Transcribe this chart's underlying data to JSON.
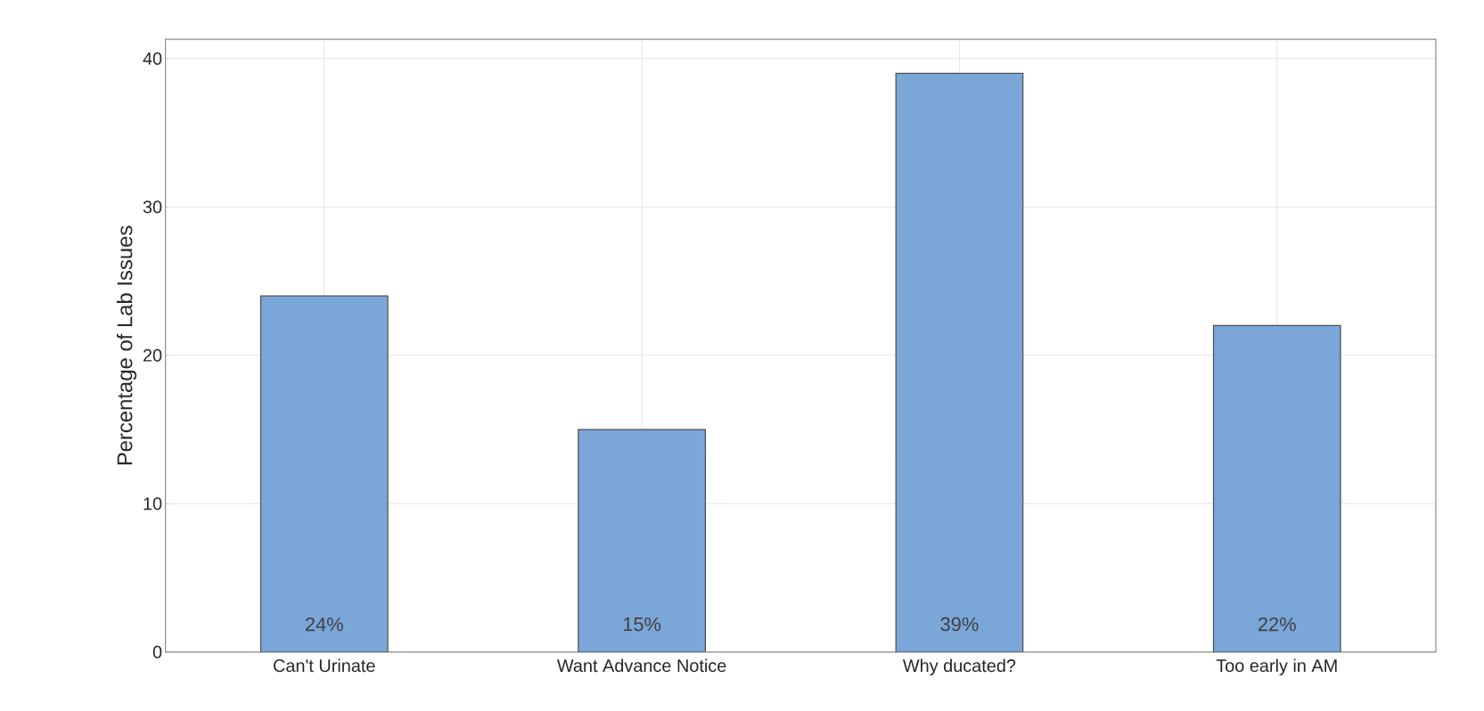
{
  "chart_data": {
    "type": "bar",
    "ylabel": "Percentage of Lab Issues",
    "categories": [
      "Can't Urinate",
      "Want Advance Notice",
      "Why ducated?",
      "Too early in AM"
    ],
    "values": [
      24,
      15,
      39,
      22
    ],
    "value_labels": [
      "24%",
      "15%",
      "39%",
      "22%"
    ],
    "color": "#7ba6d8",
    "ylim": [
      0,
      41.3
    ],
    "yticks": [
      0,
      10,
      20,
      30,
      40
    ],
    "grid": true
  }
}
